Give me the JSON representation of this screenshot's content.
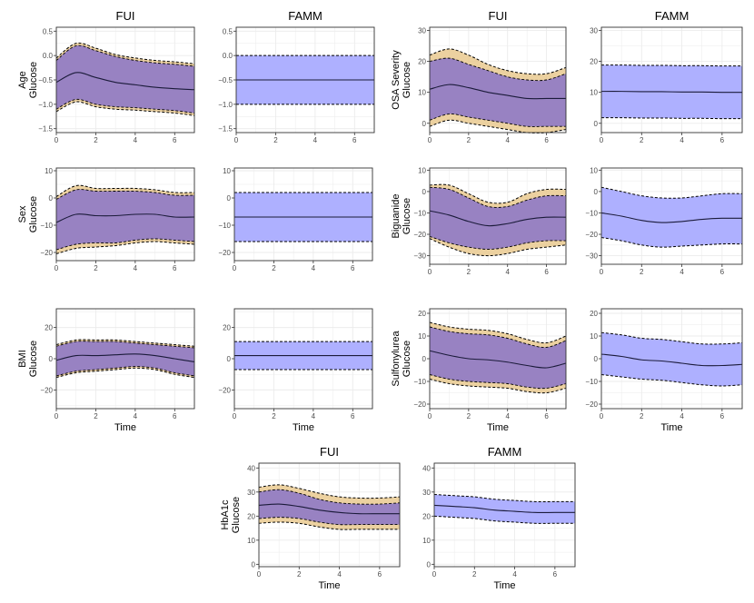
{
  "colors": {
    "fui_band": "#e9c98f",
    "fui_inner": "#8a74c8",
    "famm_band": "#aeb0ff",
    "line": "#1b1b3a",
    "grid": "#ebebeb",
    "border": "#333333"
  },
  "chart_data": [
    {
      "id": "age-fui",
      "type": "area",
      "title": "FUI",
      "ylabel": "Age\nGlucose",
      "xlabel": "",
      "xlim": [
        0,
        7
      ],
      "ylim": [
        -1.58,
        0.58
      ],
      "xticks": [
        0,
        2,
        4,
        6
      ],
      "yticks": [
        -1.5,
        -1.0,
        -0.5,
        0.0,
        0.5
      ],
      "x": [
        0,
        1,
        2,
        3,
        4,
        5,
        6,
        7
      ],
      "mean": [
        -0.55,
        -0.35,
        -0.45,
        -0.55,
        -0.6,
        -0.65,
        -0.68,
        -0.7
      ],
      "upper_outer": [
        -0.05,
        0.25,
        0.15,
        0.02,
        -0.05,
        -0.1,
        -0.13,
        -0.17
      ],
      "upper_inner": [
        -0.1,
        0.2,
        0.1,
        -0.02,
        -0.1,
        -0.15,
        -0.18,
        -0.22
      ],
      "lower_inner": [
        -1.1,
        -0.9,
        -1.0,
        -1.05,
        -1.07,
        -1.1,
        -1.13,
        -1.18
      ],
      "lower_outer": [
        -1.15,
        -0.95,
        -1.05,
        -1.1,
        -1.12,
        -1.15,
        -1.18,
        -1.23
      ]
    },
    {
      "id": "age-famm",
      "type": "area",
      "title": "FAMM",
      "ylabel": "",
      "xlabel": "",
      "xlim": [
        0,
        7
      ],
      "ylim": [
        -1.58,
        0.58
      ],
      "xticks": [
        0,
        2,
        4,
        6
      ],
      "yticks": [
        -1.5,
        -1.0,
        -0.5,
        0.0,
        0.5
      ],
      "x": [
        0,
        1,
        2,
        3,
        4,
        5,
        6,
        7
      ],
      "mean": [
        -0.5,
        -0.5,
        -0.5,
        -0.5,
        -0.5,
        -0.5,
        -0.5,
        -0.5
      ],
      "upper": [
        0.0,
        0.0,
        0.0,
        0.0,
        0.0,
        0.0,
        0.0,
        0.0
      ],
      "lower": [
        -1.0,
        -1.0,
        -1.0,
        -1.0,
        -1.0,
        -1.0,
        -1.0,
        -1.0
      ]
    },
    {
      "id": "osa-fui",
      "type": "area",
      "title": "FUI",
      "ylabel": "OSA Severity\nGlucose",
      "xlabel": "",
      "xlim": [
        0,
        7
      ],
      "ylim": [
        -3,
        31
      ],
      "xticks": [
        0,
        2,
        4,
        6
      ],
      "yticks": [
        0,
        10,
        20,
        30
      ],
      "x": [
        0,
        1,
        2,
        3,
        4,
        5,
        6,
        7
      ],
      "mean": [
        11,
        12.5,
        11.5,
        10,
        9,
        8,
        8,
        8
      ],
      "upper_outer": [
        22,
        24,
        22,
        19,
        17,
        16,
        16,
        18
      ],
      "upper_inner": [
        20,
        21,
        19,
        17,
        15,
        14,
        14,
        16
      ],
      "lower_inner": [
        1,
        3,
        2,
        1,
        0,
        -1,
        -1,
        -1
      ],
      "lower_outer": [
        -1,
        1,
        0,
        -1,
        -2,
        -3,
        -3,
        -2
      ]
    },
    {
      "id": "osa-famm",
      "type": "area",
      "title": "FAMM",
      "ylabel": "",
      "xlabel": "",
      "xlim": [
        0,
        7
      ],
      "ylim": [
        -3,
        31
      ],
      "xticks": [
        0,
        2,
        4,
        6
      ],
      "yticks": [
        0,
        10,
        20,
        30
      ],
      "x": [
        0,
        1,
        2,
        3,
        4,
        5,
        6,
        7
      ],
      "mean": [
        10.3,
        10.3,
        10.2,
        10.2,
        10.1,
        10.1,
        10.0,
        10.0
      ],
      "upper": [
        18.8,
        18.8,
        18.7,
        18.7,
        18.6,
        18.6,
        18.5,
        18.5
      ],
      "lower": [
        1.8,
        1.8,
        1.7,
        1.7,
        1.6,
        1.6,
        1.5,
        1.5
      ]
    },
    {
      "id": "sex-fui",
      "type": "area",
      "title": "",
      "ylabel": "Sex\nGlucose",
      "xlabel": "",
      "xlim": [
        0,
        7
      ],
      "ylim": [
        -23,
        11
      ],
      "xticks": [
        0,
        2,
        4,
        6
      ],
      "yticks": [
        -20,
        -10,
        0,
        10
      ],
      "x": [
        0,
        1,
        2,
        3,
        4,
        5,
        6,
        7
      ],
      "mean": [
        -9,
        -6,
        -6.5,
        -6.5,
        -6,
        -6,
        -7,
        -7
      ],
      "upper_outer": [
        0.5,
        4.5,
        3.5,
        3.5,
        3.5,
        3,
        2,
        2
      ],
      "upper_inner": [
        -0.5,
        3,
        2.5,
        2.5,
        2.5,
        2,
        1,
        1
      ],
      "lower_inner": [
        -19,
        -17,
        -16.5,
        -16.5,
        -15.5,
        -15,
        -15.5,
        -16
      ],
      "lower_outer": [
        -20.5,
        -18.5,
        -18,
        -17.5,
        -16.5,
        -16,
        -16.5,
        -17
      ]
    },
    {
      "id": "sex-famm",
      "type": "area",
      "title": "",
      "ylabel": "",
      "xlabel": "",
      "xlim": [
        0,
        7
      ],
      "ylim": [
        -23,
        11
      ],
      "xticks": [
        0,
        2,
        4,
        6
      ],
      "yticks": [
        -20,
        -10,
        0,
        10
      ],
      "x": [
        0,
        1,
        2,
        3,
        4,
        5,
        6,
        7
      ],
      "mean": [
        -7,
        -7,
        -7,
        -7,
        -7,
        -7,
        -7,
        -7
      ],
      "upper": [
        2,
        2,
        2,
        2,
        2,
        2,
        2,
        2
      ],
      "lower": [
        -16,
        -16,
        -16,
        -16,
        -16,
        -16,
        -16,
        -16
      ]
    },
    {
      "id": "biguanide-fui",
      "type": "area",
      "title": "",
      "ylabel": "Biguanide\nGlucose",
      "xlabel": "",
      "xlim": [
        0,
        7
      ],
      "ylim": [
        -34,
        11
      ],
      "xticks": [
        0,
        2,
        4,
        6
      ],
      "yticks": [
        -30,
        -20,
        -10,
        0,
        10
      ],
      "x": [
        0,
        1,
        2,
        3,
        4,
        5,
        6,
        7
      ],
      "mean": [
        -9,
        -11,
        -14,
        -16,
        -15,
        -13,
        -12,
        -12
      ],
      "upper_outer": [
        3,
        3,
        -1,
        -5,
        -5,
        -1,
        1,
        1
      ],
      "upper_inner": [
        2,
        1,
        -3,
        -7,
        -7,
        -4,
        -2,
        -2
      ],
      "lower_inner": [
        -21,
        -24,
        -26,
        -27,
        -26,
        -24,
        -23,
        -23
      ],
      "lower_outer": [
        -22,
        -26,
        -29,
        -30,
        -29,
        -27,
        -26,
        -25
      ]
    },
    {
      "id": "biguanide-famm",
      "type": "area",
      "title": "",
      "ylabel": "",
      "xlabel": "",
      "xlim": [
        0,
        7
      ],
      "ylim": [
        -34,
        11
      ],
      "xticks": [
        0,
        2,
        4,
        6
      ],
      "yticks": [
        -30,
        -20,
        -10,
        0,
        10
      ],
      "x": [
        0,
        1,
        2,
        3,
        4,
        5,
        6,
        7
      ],
      "mean": [
        -10,
        -11.5,
        -13.5,
        -14.5,
        -14,
        -13,
        -12.5,
        -12.5
      ],
      "upper": [
        2,
        0,
        -2,
        -3,
        -3,
        -2,
        -1,
        -1
      ],
      "lower": [
        -21.5,
        -23,
        -25,
        -26,
        -25.5,
        -25,
        -24.5,
        -24.5
      ]
    },
    {
      "id": "bmi-fui",
      "type": "area",
      "title": "",
      "ylabel": "BMI\nGlucose",
      "xlabel": "Time",
      "xlim": [
        0,
        7
      ],
      "ylim": [
        -32,
        32
      ],
      "xticks": [
        0,
        2,
        4,
        6
      ],
      "yticks": [
        -20,
        0,
        20
      ],
      "x": [
        0,
        1,
        2,
        3,
        4,
        5,
        6,
        7
      ],
      "mean": [
        -1,
        2,
        2,
        2.5,
        3,
        2,
        0,
        -2
      ],
      "upper_outer": [
        9,
        12,
        12,
        12,
        11,
        10,
        9,
        8
      ],
      "upper_inner": [
        8,
        11,
        11,
        11,
        10,
        9,
        8,
        7
      ],
      "lower_inner": [
        -11,
        -8,
        -7,
        -6,
        -5,
        -6,
        -9,
        -11
      ],
      "lower_outer": [
        -12,
        -9,
        -8,
        -7,
        -6,
        -7,
        -10,
        -12
      ]
    },
    {
      "id": "bmi-famm",
      "type": "area",
      "title": "",
      "ylabel": "",
      "xlabel": "Time",
      "xlim": [
        0,
        7
      ],
      "ylim": [
        -32,
        32
      ],
      "xticks": [
        0,
        2,
        4,
        6
      ],
      "yticks": [
        -20,
        0,
        20
      ],
      "x": [
        0,
        1,
        2,
        3,
        4,
        5,
        6,
        7
      ],
      "mean": [
        2,
        2,
        2,
        2,
        2,
        2,
        2,
        2
      ],
      "upper": [
        11,
        11,
        11,
        11,
        11,
        11,
        11,
        11
      ],
      "lower": [
        -7,
        -7,
        -7,
        -7,
        -7,
        -7,
        -7,
        -7
      ]
    },
    {
      "id": "sulfonylurea-fui",
      "type": "area",
      "title": "",
      "ylabel": "Sulfonylurea\nGlucose",
      "xlabel": "Time",
      "xlim": [
        0,
        7
      ],
      "ylim": [
        -22,
        22
      ],
      "xticks": [
        0,
        2,
        4,
        6
      ],
      "yticks": [
        -20,
        -10,
        0,
        10,
        20
      ],
      "x": [
        0,
        1,
        2,
        3,
        4,
        5,
        6,
        7
      ],
      "mean": [
        3.5,
        1.5,
        0,
        -0.5,
        -1.5,
        -3,
        -4,
        -2
      ],
      "upper_outer": [
        16,
        14,
        13,
        12.5,
        11,
        8.5,
        7,
        10
      ],
      "upper_inner": [
        14,
        12,
        11,
        10.5,
        9,
        6.5,
        5,
        8
      ],
      "lower_inner": [
        -7,
        -9,
        -10,
        -10.5,
        -11,
        -12.5,
        -13,
        -11
      ],
      "lower_outer": [
        -9,
        -11,
        -12,
        -12.5,
        -13,
        -14.5,
        -15,
        -13
      ]
    },
    {
      "id": "sulfonylurea-famm",
      "type": "area",
      "title": "",
      "ylabel": "",
      "xlabel": "Time",
      "xlim": [
        0,
        7
      ],
      "ylim": [
        -22,
        22
      ],
      "xticks": [
        0,
        2,
        4,
        6
      ],
      "yticks": [
        -20,
        -10,
        0,
        10,
        20
      ],
      "x": [
        0,
        1,
        2,
        3,
        4,
        5,
        6,
        7
      ],
      "mean": [
        2,
        1,
        -0.5,
        -1,
        -2,
        -3,
        -3,
        -2.5
      ],
      "upper": [
        11.5,
        10.5,
        9,
        8.5,
        7.5,
        6.5,
        6.5,
        7
      ],
      "lower": [
        -7,
        -8,
        -9,
        -9.5,
        -10.5,
        -11.5,
        -12,
        -11.5
      ]
    },
    {
      "id": "hba1c-fui",
      "type": "area",
      "title": "FUI",
      "ylabel": "HbA1c\nGlucose",
      "xlabel": "Time",
      "xlim": [
        0,
        7
      ],
      "ylim": [
        -1,
        42
      ],
      "xticks": [
        0,
        2,
        4,
        6
      ],
      "yticks": [
        0,
        10,
        20,
        30,
        40
      ],
      "x": [
        0,
        1,
        2,
        3,
        4,
        5,
        6,
        7
      ],
      "mean": [
        24.5,
        25,
        24,
        22.5,
        21.5,
        21,
        21,
        21
      ],
      "upper_outer": [
        32,
        33,
        31.5,
        29.5,
        28,
        27.5,
        27.5,
        28
      ],
      "upper_inner": [
        30,
        31,
        29.5,
        27,
        25.5,
        25,
        25,
        25.5
      ],
      "lower_inner": [
        19,
        19.5,
        19,
        17.5,
        16.5,
        16.5,
        16.5,
        16.5
      ],
      "lower_outer": [
        17,
        17.5,
        17,
        15.5,
        14.5,
        14.5,
        14.5,
        14.5
      ]
    },
    {
      "id": "hba1c-famm",
      "type": "area",
      "title": "FAMM",
      "ylabel": "",
      "xlabel": "Time",
      "xlim": [
        0,
        7
      ],
      "ylim": [
        -1,
        42
      ],
      "xticks": [
        0,
        2,
        4,
        6
      ],
      "yticks": [
        0,
        10,
        20,
        30,
        40
      ],
      "x": [
        0,
        1,
        2,
        3,
        4,
        5,
        6,
        7
      ],
      "mean": [
        24.5,
        24,
        23.5,
        22.5,
        22,
        21.5,
        21.5,
        21.5
      ],
      "upper": [
        29,
        28.5,
        28,
        27,
        26.5,
        26,
        26,
        26
      ],
      "lower": [
        20,
        19.5,
        19,
        18,
        17.5,
        17,
        17,
        17
      ]
    }
  ]
}
